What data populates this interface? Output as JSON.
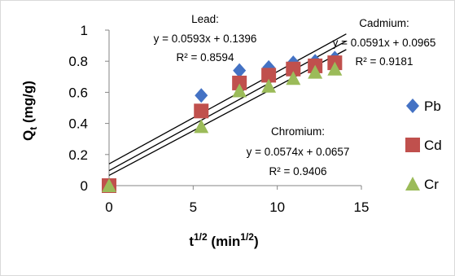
{
  "chart_data": {
    "type": "scatter",
    "xlabel": "t^{1/2} (min^{1/2})",
    "xlabel_parts": {
      "base": "t",
      "exp": "1/2",
      "mid": " (min",
      "exp2": "1/2",
      "end": ")"
    },
    "ylabel_parts": {
      "base": "Q",
      "sub": "t",
      "rest": " (mg/g)"
    },
    "xlim": [
      0,
      15
    ],
    "ylim": [
      0,
      1
    ],
    "xticks": [
      0,
      5,
      10,
      15
    ],
    "yticks": [
      0,
      0.2,
      0.4,
      0.6,
      0.8,
      1
    ],
    "ytick_labels": [
      "0",
      "0.2",
      "0.4",
      "0.6",
      "0.8",
      "1"
    ],
    "xtick_labels": [
      "0",
      "5",
      "10",
      "15"
    ],
    "grid": false,
    "legend_position": "right",
    "series": [
      {
        "name": "Pb",
        "color": "#4472c4",
        "marker": "diamond",
        "x": [
          0,
          5.48,
          7.75,
          9.49,
          10.95,
          12.25,
          13.42
        ],
        "y": [
          0,
          0.58,
          0.74,
          0.76,
          0.79,
          0.8,
          0.82
        ],
        "trend": {
          "slope": 0.0593,
          "intercept": 0.1396
        }
      },
      {
        "name": "Cd",
        "color": "#c0504d",
        "marker": "square",
        "x": [
          0,
          5.48,
          7.75,
          9.49,
          10.95,
          12.25,
          13.42
        ],
        "y": [
          0,
          0.48,
          0.66,
          0.71,
          0.75,
          0.77,
          0.79
        ],
        "trend": {
          "slope": 0.0591,
          "intercept": 0.0965
        }
      },
      {
        "name": "Cr",
        "color": "#9bbb59",
        "marker": "triangle",
        "x": [
          0,
          5.48,
          7.75,
          9.49,
          10.95,
          12.25,
          13.42
        ],
        "y": [
          0,
          0.38,
          0.61,
          0.64,
          0.69,
          0.73,
          0.75
        ],
        "trend": {
          "slope": 0.0574,
          "intercept": 0.0657
        }
      }
    ],
    "annotations": [
      {
        "id": "lead",
        "lines": [
          "Lead:",
          "y = 0.0593x + 0.1396",
          "R² = 0.8594"
        ]
      },
      {
        "id": "cadmium",
        "lines": [
          "Cadmium:",
          "y = 0.0591x + 0.0965",
          "R² = 0.9181"
        ]
      },
      {
        "id": "chromium",
        "lines": [
          "Chromium:",
          "y = 0.0574x + 0.0657",
          "R² = 0.9406"
        ]
      }
    ]
  }
}
